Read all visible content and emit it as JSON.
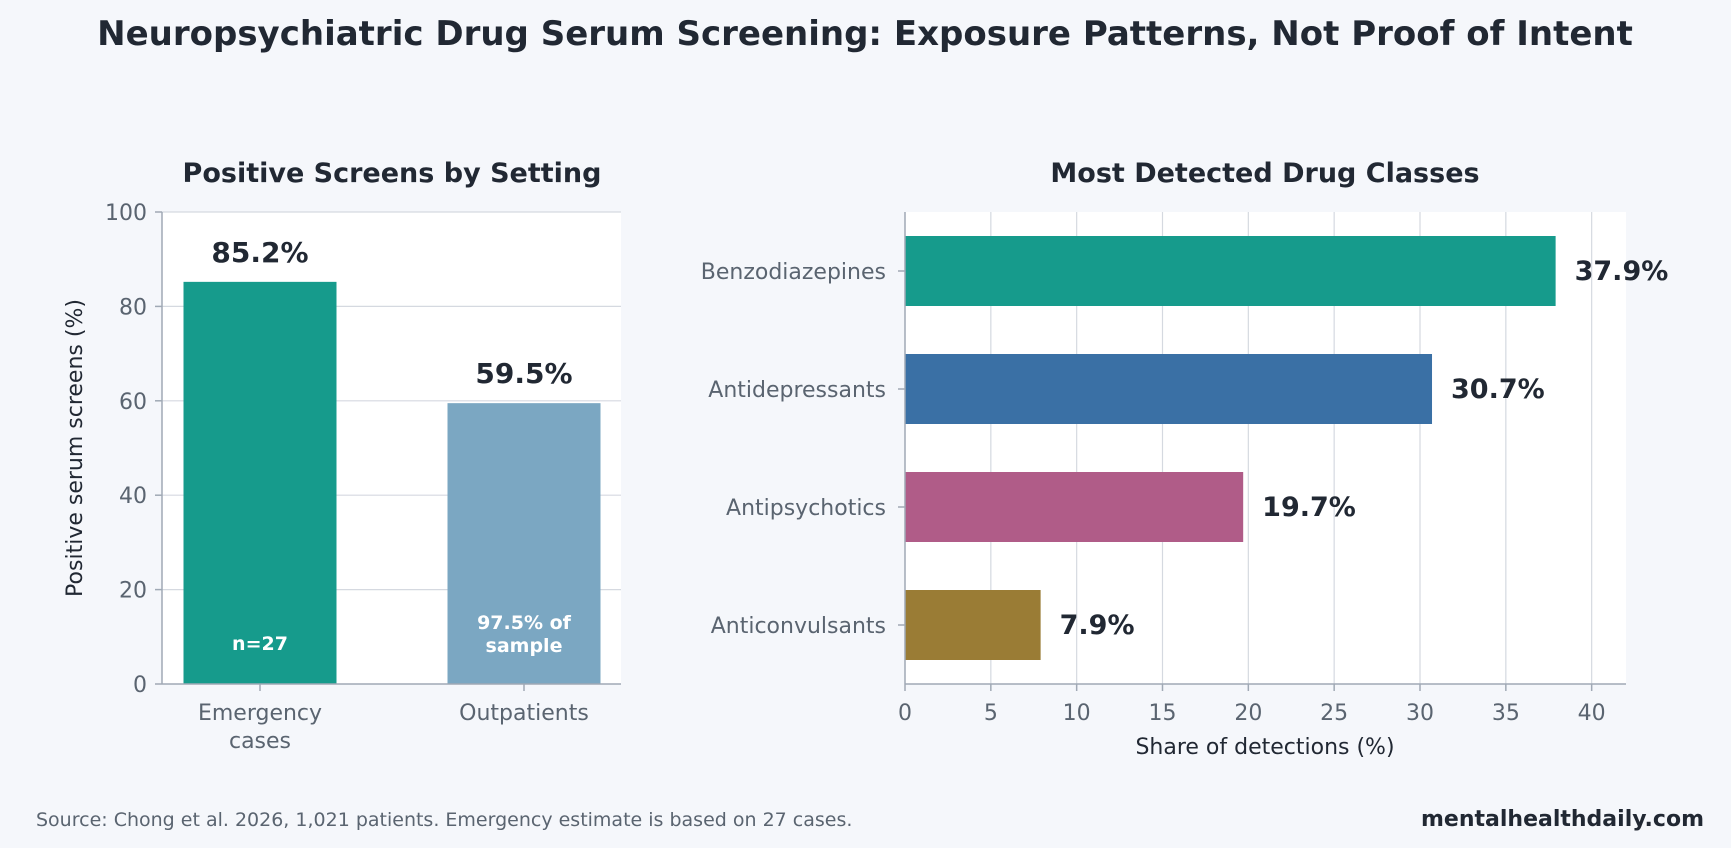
{
  "page": {
    "title": "Neuropsychiatric Drug Serum Screening: Exposure Patterns, Not Proof of Intent",
    "source_note": "Source: Chong et al. 2026, 1,021 patients. Emergency estimate is based on 27 cases.",
    "brand": "mentalhealthdaily.com"
  },
  "colors": {
    "background": "#f5f7fb",
    "panel": "#ffffff",
    "grid": "#d5d9e0",
    "axis": "#a0a9b5",
    "text_dark": "#212833",
    "text_muted": "#5a6470",
    "teal": "#169b8c",
    "steel_blue": "#7ba7c2",
    "blue": "#3a70a5",
    "magenta": "#b05c88",
    "olive": "#9a7c35"
  },
  "chart_data": [
    {
      "type": "bar",
      "title": "Positive Screens by Setting",
      "categories": [
        "Emergency\ncases",
        "Outpatients"
      ],
      "values": [
        85.2,
        59.5
      ],
      "value_labels": [
        "85.2%",
        "59.5%"
      ],
      "inner_labels": [
        "n=27",
        "97.5% of\nsample"
      ],
      "bar_colors": [
        "#169b8c",
        "#7ba7c2"
      ],
      "xlabel": "",
      "ylabel": "Positive serum screens (%)",
      "ylim": [
        0,
        100
      ],
      "yticks": [
        0,
        20,
        40,
        60,
        80,
        100
      ],
      "grid": true
    },
    {
      "type": "bar",
      "orientation": "horizontal",
      "title": "Most Detected Drug Classes",
      "categories": [
        "Benzodiazepines",
        "Antidepressants",
        "Antipsychotics",
        "Anticonvulsants"
      ],
      "values": [
        37.9,
        30.7,
        19.7,
        7.9
      ],
      "value_labels": [
        "37.9%",
        "30.7%",
        "19.7%",
        "7.9%"
      ],
      "bar_colors": [
        "#169b8c",
        "#3a70a5",
        "#b05c88",
        "#9a7c35"
      ],
      "xlabel": "Share of detections (%)",
      "ylabel": "",
      "xlim": [
        0,
        42
      ],
      "xticks": [
        0,
        5,
        10,
        15,
        20,
        25,
        30,
        35,
        40
      ],
      "grid": true
    }
  ]
}
